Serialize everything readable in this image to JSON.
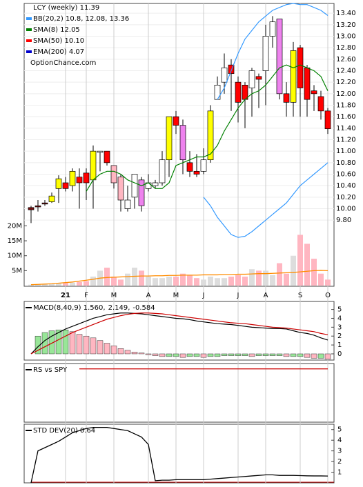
{
  "chart_data": [
    {
      "type": "candlestick",
      "title": "LCY (weekly) 11.39",
      "watermark": "OptionChance.com",
      "categories": [
        null,
        null,
        null,
        null,
        null,
        "21",
        null,
        null,
        "F",
        null,
        null,
        null,
        "M",
        null,
        null,
        null,
        null,
        "A",
        null,
        null,
        null,
        "M",
        null,
        null,
        null,
        "J",
        null,
        null,
        null,
        null,
        "J",
        null,
        null,
        null,
        "A",
        null,
        null,
        null,
        null,
        "S",
        null,
        null,
        null,
        "O"
      ],
      "open": [
        9.98,
        10.03,
        10.08,
        10.12,
        10.35,
        10.45,
        10.4,
        10.55,
        10.62,
        10.5,
        10.98,
        11.0,
        10.75,
        10.55,
        10.0,
        10.2,
        10.5,
        10.35,
        10.4,
        10.45,
        10.85,
        11.6,
        11.45,
        10.8,
        10.65,
        10.65,
        10.85,
        11.9,
        12.2,
        12.5,
        12.2,
        12.15,
        12.1,
        12.3,
        12.4,
        13.0,
        13.3,
        12.0,
        11.85,
        12.8,
        12.45,
        12.05,
        11.95,
        11.7
      ],
      "high": [
        10.05,
        10.15,
        10.15,
        10.28,
        10.58,
        10.55,
        10.7,
        10.7,
        10.7,
        11.1,
        11.0,
        11.0,
        10.75,
        10.6,
        10.4,
        10.6,
        10.55,
        10.6,
        10.5,
        11.0,
        11.6,
        11.7,
        11.55,
        11.0,
        10.95,
        11.05,
        11.8,
        12.3,
        12.7,
        12.6,
        12.3,
        12.2,
        12.45,
        12.35,
        13.2,
        13.35,
        13.3,
        12.2,
        12.9,
        12.85,
        12.5,
        12.15,
        12.05,
        11.75
      ],
      "low": [
        9.75,
        9.95,
        10.05,
        10.1,
        10.1,
        10.3,
        10.3,
        10.0,
        10.15,
        10.0,
        10.65,
        10.75,
        10.35,
        9.95,
        9.95,
        10.0,
        9.95,
        10.3,
        10.35,
        10.4,
        10.55,
        11.3,
        10.6,
        10.55,
        10.55,
        10.6,
        10.8,
        11.9,
        12.0,
        11.7,
        11.5,
        11.4,
        11.6,
        11.75,
        11.8,
        12.8,
        11.9,
        11.6,
        11.6,
        11.6,
        11.6,
        11.7,
        11.55,
        11.3
      ],
      "close": [
        10.02,
        10.05,
        10.1,
        10.22,
        10.52,
        10.35,
        10.65,
        10.45,
        10.45,
        11.0,
        11.0,
        10.8,
        10.45,
        10.15,
        10.15,
        10.6,
        10.05,
        10.45,
        10.45,
        10.85,
        11.6,
        11.45,
        10.85,
        10.65,
        10.6,
        10.85,
        11.7,
        12.15,
        12.45,
        12.35,
        11.85,
        11.9,
        12.4,
        12.25,
        13.0,
        13.25,
        12.0,
        11.85,
        12.75,
        12.1,
        11.9,
        12.0,
        11.7,
        11.39
      ],
      "colors": [
        "#7a1010",
        "#7a1010",
        "#7a1010",
        "#ffff00",
        "#ffff00",
        "#ff0000",
        "#ffff00",
        "#ff0000",
        "#ff0000",
        "#ffff00",
        "#ffffff",
        "#ff0000",
        "#ffb6c1",
        "#ffb6c1",
        "#ffffff",
        "#ffffff",
        "#ee82ee",
        "#ffffff",
        "#ffffff",
        "#ffffff",
        "#ffff00",
        "#ff0000",
        "#ee82ee",
        "#ff0000",
        "#ff0000",
        "#ffffff",
        "#ffff00",
        "#ffffff",
        "#ffffff",
        "#ff0000",
        "#ff0000",
        "#ff0000",
        "#ffffff",
        "#ff0000",
        "#ffffff",
        "#ffffff",
        "#ee82ee",
        "#ff0000",
        "#ffff00",
        "#ff0000",
        "#ff0000",
        "#ff0000",
        "#ff0000",
        "#ff0000"
      ],
      "series": [
        {
          "name": "BB(20,2) 10.8, 12.08, 13.36",
          "color": "#3399ff",
          "values": [
            null,
            null,
            null,
            null,
            null,
            null,
            null,
            null,
            null,
            null,
            null,
            null,
            null,
            null,
            null,
            null,
            null,
            null,
            null,
            null,
            null,
            null,
            null,
            null,
            null,
            null,
            null,
            11.9,
            12.1,
            12.4,
            12.7,
            12.95,
            13.1,
            13.25,
            13.35,
            13.45,
            13.5,
            13.55,
            13.57,
            13.55,
            13.55,
            13.5,
            13.45,
            13.36
          ],
          "lower": [
            null,
            null,
            null,
            null,
            null,
            null,
            null,
            null,
            null,
            null,
            null,
            null,
            null,
            null,
            null,
            null,
            null,
            null,
            null,
            null,
            null,
            null,
            null,
            null,
            null,
            10.2,
            10.05,
            9.85,
            9.7,
            9.55,
            9.5,
            9.52,
            9.6,
            9.7,
            9.8,
            9.9,
            10.0,
            10.1,
            10.25,
            10.4,
            10.5,
            10.6,
            10.7,
            10.8
          ]
        },
        {
          "name": "SMA(8) 12.05",
          "color": "#008000",
          "values": [
            null,
            null,
            null,
            null,
            null,
            null,
            null,
            null,
            10.3,
            10.5,
            10.6,
            10.65,
            10.65,
            10.6,
            10.5,
            10.45,
            10.4,
            10.45,
            10.35,
            10.35,
            10.45,
            10.75,
            10.8,
            10.85,
            10.9,
            10.9,
            10.95,
            11.1,
            11.35,
            11.55,
            11.75,
            11.9,
            12.0,
            12.05,
            12.15,
            12.3,
            12.45,
            12.5,
            12.45,
            12.5,
            12.45,
            12.4,
            12.3,
            12.05
          ]
        },
        {
          "name": "SMA(50) 10.10",
          "color": "#ff0000"
        },
        {
          "name": "EMA(200) 4.07",
          "color": "#0000cc"
        }
      ],
      "ylim": [
        8.65,
        13.57
      ],
      "yticks": [
        {
          "value": 9.8,
          "label": "9.80"
        },
        {
          "value": 10.0,
          "label": "10.00"
        },
        {
          "value": 10.2,
          "label": "10.20"
        },
        {
          "value": 10.4,
          "label": "10.40"
        },
        {
          "value": 10.6,
          "label": "10.60"
        },
        {
          "value": 10.8,
          "label": "10.80"
        },
        {
          "value": 11.0,
          "label": "11.00"
        },
        {
          "value": 11.2,
          "label": "11.20"
        },
        {
          "value": 11.4,
          "label": "11.40"
        },
        {
          "value": 11.6,
          "label": "11.60"
        },
        {
          "value": 11.8,
          "label": "11.80"
        },
        {
          "value": 12.0,
          "label": "12.00"
        },
        {
          "value": 12.2,
          "label": "12.20"
        },
        {
          "value": 12.4,
          "label": "12.40"
        },
        {
          "value": 12.6,
          "label": "12.60"
        },
        {
          "value": 12.8,
          "label": "12.80"
        },
        {
          "value": 13.0,
          "label": "13.00"
        },
        {
          "value": 13.2,
          "label": "13.20"
        },
        {
          "value": 13.4,
          "label": "13.40"
        }
      ],
      "volume": {
        "values": [
          0.3,
          0.4,
          0.5,
          0.6,
          0.8,
          0.9,
          1,
          1.2,
          1.5,
          3,
          5,
          6,
          3,
          2,
          4,
          6,
          5,
          3,
          2.5,
          2.5,
          3,
          3,
          4,
          3.5,
          2.5,
          2,
          3,
          2.5,
          2.5,
          3,
          3.5,
          3,
          5.5,
          5,
          5,
          3.5,
          7.5,
          4,
          10,
          17,
          14,
          9,
          4,
          2
        ],
        "average": [
          0.3,
          0.4,
          0.5,
          0.6,
          0.8,
          1,
          1.2,
          1.5,
          1.8,
          2.1,
          2.5,
          2.7,
          2.8,
          2.9,
          3,
          3.1,
          3.2,
          3.2,
          3.3,
          3.3,
          3.4,
          3.4,
          3.5,
          3.5,
          3.5,
          3.6,
          3.6,
          3.6,
          3.7,
          3.7,
          3.8,
          3.8,
          3.9,
          4,
          4,
          4.1,
          4.2,
          4.3,
          4.4,
          4.6,
          4.8,
          5,
          5.1,
          5
        ],
        "color": "#ff8c00",
        "up_color": "#dddddd",
        "down_color": "#ffb6c1"
      },
      "y2lim": [
        0,
        94.5
      ],
      "y2ticks": [
        {
          "value": 5,
          "label": "5M"
        },
        {
          "value": 10,
          "label": "10M"
        },
        {
          "value": 15,
          "label": "15M"
        },
        {
          "value": 20,
          "label": "20M"
        }
      ],
      "grid": true
    },
    {
      "type": "macd",
      "ylim": [
        -0.7,
        5.9
      ],
      "yticks": [
        0,
        1,
        2,
        3,
        4,
        5
      ],
      "series": [
        {
          "name": "MACD(8,40,9) 1.560,",
          "color": "#000000",
          "values": [
            0,
            0.8,
            1.5,
            2.0,
            2.4,
            2.8,
            3.1,
            3.4,
            3.7,
            4.0,
            4.2,
            4.4,
            4.5,
            4.6,
            4.6,
            4.55,
            4.5,
            4.4,
            4.3,
            4.2,
            4.1,
            4.0,
            3.95,
            3.85,
            3.7,
            3.6,
            3.5,
            3.4,
            3.35,
            3.3,
            3.2,
            3.1,
            3.0,
            2.95,
            2.9,
            2.85,
            2.85,
            2.8,
            2.6,
            2.4,
            2.3,
            2.1,
            1.8,
            1.56
          ]
        },
        {
          "name": "2.149,",
          "color": "#cc0000",
          "values": [
            0,
            0.4,
            0.8,
            1.2,
            1.6,
            2.0,
            2.4,
            2.7,
            3.0,
            3.3,
            3.6,
            3.9,
            4.1,
            4.3,
            4.45,
            4.55,
            4.6,
            4.6,
            4.55,
            4.5,
            4.4,
            4.3,
            4.2,
            4.1,
            4.0,
            3.9,
            3.8,
            3.7,
            3.6,
            3.5,
            3.45,
            3.4,
            3.3,
            3.2,
            3.1,
            3.0,
            2.95,
            2.9,
            2.8,
            2.7,
            2.6,
            2.5,
            2.3,
            2.149
          ]
        },
        {
          "name": "-0.584",
          "color": "#0055cc",
          "values": [
            0,
            2.0,
            2.4,
            2.6,
            2.7,
            2.7,
            2.5,
            2.2,
            2.0,
            1.8,
            1.5,
            1.2,
            0.9,
            0.6,
            0.4,
            0.2,
            0.1,
            -0.1,
            -0.2,
            -0.3,
            -0.3,
            -0.3,
            -0.4,
            -0.3,
            -0.3,
            -0.4,
            -0.3,
            -0.3,
            -0.2,
            -0.2,
            -0.2,
            -0.2,
            -0.3,
            -0.2,
            -0.2,
            -0.2,
            -0.2,
            -0.3,
            -0.3,
            -0.3,
            -0.4,
            -0.5,
            -0.5,
            -0.584
          ],
          "up_color": "#98e698",
          "down_color": "#ffb6c1"
        }
      ]
    },
    {
      "type": "line",
      "ylim": [
        0,
        1.1
      ],
      "series": [
        {
          "name": "RS vs SPY",
          "color": "#cc0000",
          "values": [
            null,
            null,
            null,
            null,
            null,
            null,
            null,
            1,
            1,
            1,
            1,
            1,
            1,
            1,
            1,
            1,
            1,
            1,
            1,
            1,
            1,
            1,
            1,
            1,
            1,
            1,
            1,
            1,
            1,
            1,
            1,
            1,
            1,
            1,
            1,
            1,
            1,
            1,
            1,
            1,
            1,
            1,
            1,
            1
          ]
        }
      ]
    },
    {
      "type": "line",
      "ylim": [
        0,
        5.5
      ],
      "yticks": [
        1,
        2,
        3,
        4,
        5
      ],
      "series": [
        {
          "name": "STD DEV(20) 0.64",
          "color": "#000000",
          "values": [
            0,
            3.0,
            3.3,
            3.6,
            3.9,
            4.3,
            4.7,
            4.9,
            5.1,
            5.2,
            5.2,
            5.2,
            5.1,
            5.0,
            4.9,
            4.6,
            4.3,
            3.6,
            0.2,
            0.25,
            0.25,
            0.3,
            0.3,
            0.3,
            0.3,
            0.3,
            0.35,
            0.4,
            0.45,
            0.5,
            0.55,
            0.6,
            0.65,
            0.7,
            0.75,
            0.75,
            0.7,
            0.7,
            0.7,
            0.68,
            0.66,
            0.65,
            0.65,
            0.64
          ]
        }
      ]
    }
  ]
}
